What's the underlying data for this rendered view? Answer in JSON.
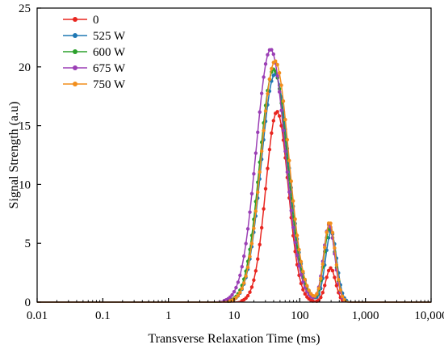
{
  "chart_data": {
    "type": "line",
    "title": "",
    "xlabel": "Transverse Relaxation Time (ms)",
    "ylabel": "Signal Strength (a.u)",
    "xscale": "log",
    "xlim": [
      0.01,
      10000
    ],
    "ylim": [
      0,
      25
    ],
    "x_ticks": [
      0.01,
      0.1,
      1,
      10,
      100,
      1000,
      10000
    ],
    "x_tick_labels": [
      "0.01",
      "0.1",
      "1",
      "10",
      "100",
      "1,000",
      "10,000"
    ],
    "y_ticks": [
      0,
      5,
      10,
      15,
      20,
      25
    ],
    "y_tick_labels": [
      "0",
      "5",
      "10",
      "15",
      "20",
      "25"
    ],
    "grid": false,
    "legend_position": "top-left",
    "series": [
      {
        "name": "0",
        "color": "#e8251f",
        "peaks": [
          {
            "center_ms": 45,
            "height": 16.2,
            "width_decades": 0.17
          },
          {
            "center_ms": 295,
            "height": 2.9,
            "width_decades": 0.075
          }
        ]
      },
      {
        "name": "525 W",
        "color": "#1f78b4",
        "peaks": [
          {
            "center_ms": 42,
            "height": 19.4,
            "width_decades": 0.21
          },
          {
            "center_ms": 300,
            "height": 6.0,
            "width_decades": 0.085
          }
        ]
      },
      {
        "name": "600 W",
        "color": "#2ca02c",
        "peaks": [
          {
            "center_ms": 40,
            "height": 19.8,
            "width_decades": 0.21
          },
          {
            "center_ms": 285,
            "height": 6.3,
            "width_decades": 0.085
          }
        ]
      },
      {
        "name": "675 W",
        "color": "#9b3fb5",
        "peaks": [
          {
            "center_ms": 36,
            "height": 21.5,
            "width_decades": 0.22
          },
          {
            "center_ms": 280,
            "height": 6.6,
            "width_decades": 0.085
          }
        ]
      },
      {
        "name": "750 W",
        "color": "#f28e1c",
        "peaks": [
          {
            "center_ms": 42,
            "height": 20.5,
            "width_decades": 0.21
          },
          {
            "center_ms": 285,
            "height": 6.8,
            "width_decades": 0.085
          }
        ]
      }
    ]
  }
}
